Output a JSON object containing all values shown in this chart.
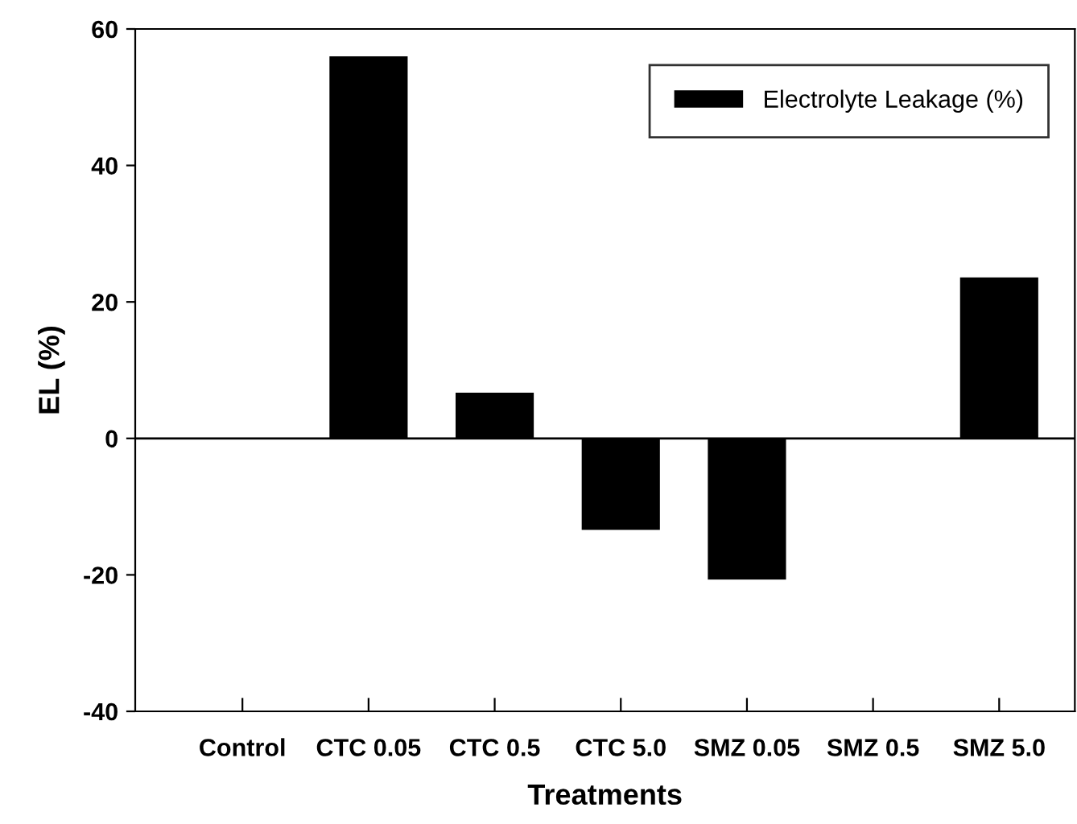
{
  "chart_data": {
    "type": "bar",
    "xlabel": "Treatments",
    "ylabel": "EL (%)",
    "categories": [
      "Control",
      "CTC 0.05",
      "CTC 0.5",
      "CTC 5.0",
      "SMZ 0.05",
      "SMZ 0.5",
      "SMZ 5.0"
    ],
    "series": [
      {
        "name": "Electrolyte Leakage (%)",
        "color": "#000000",
        "values": [
          0,
          56,
          6.7,
          -13.4,
          -20.7,
          0,
          23.6
        ]
      }
    ],
    "ylim": [
      -40,
      60
    ],
    "yticks": [
      -40,
      -20,
      0,
      20,
      40,
      60
    ],
    "ref_lines": [
      {
        "axis": "y",
        "value": 0,
        "color": "#000000"
      }
    ],
    "grid": false,
    "legend": "top right"
  }
}
